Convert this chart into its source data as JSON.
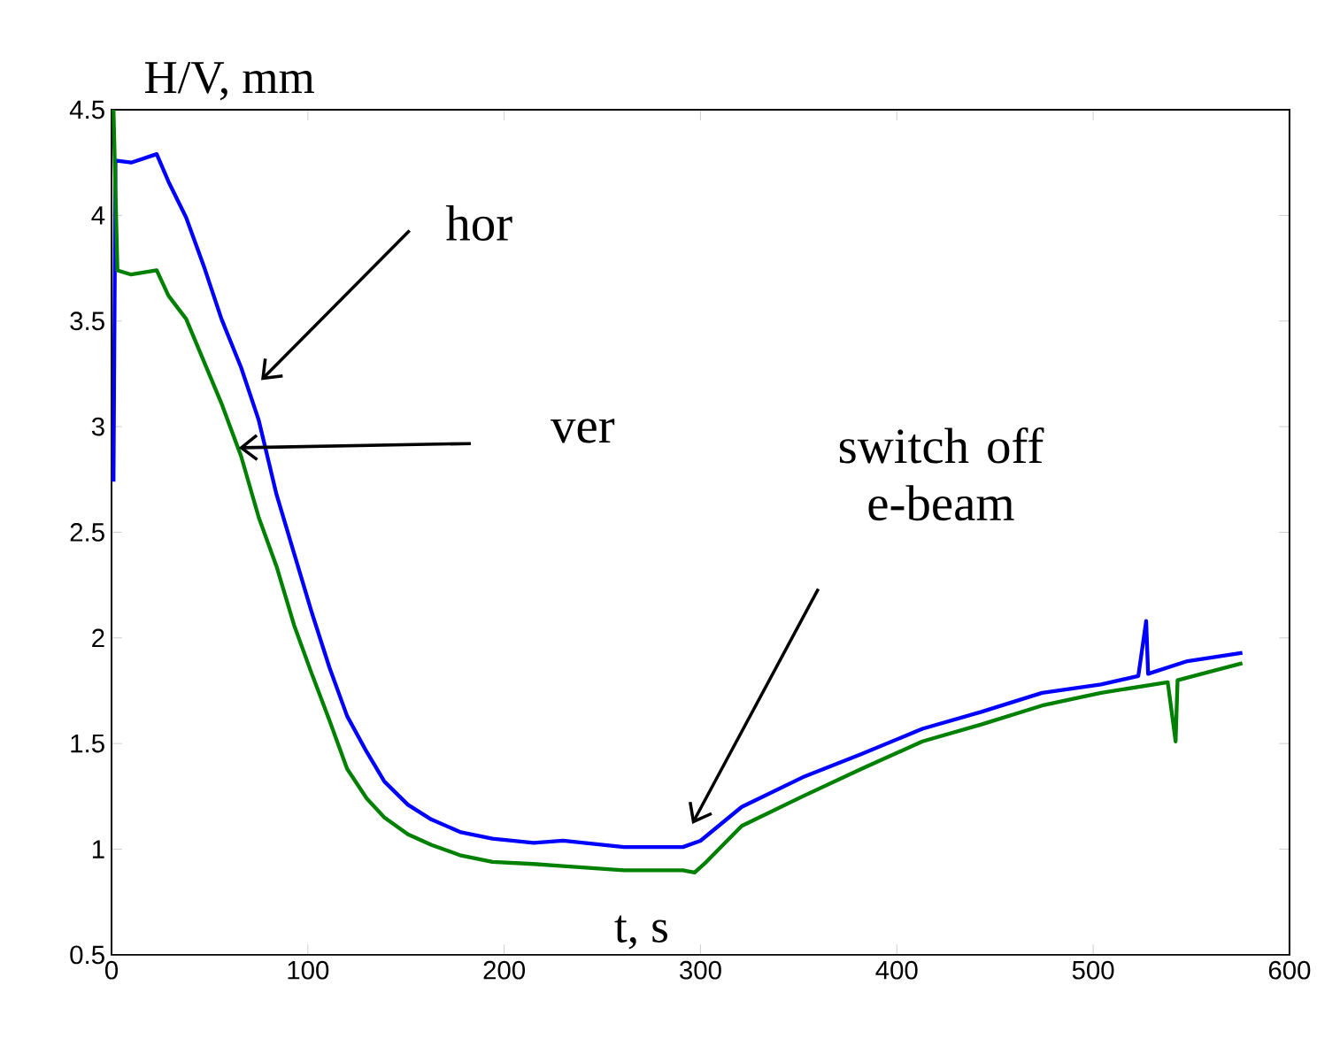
{
  "chart_data": {
    "type": "line",
    "ylabel": "H/V, mm",
    "xlabel": "t,  s",
    "xlim": [
      0,
      600
    ],
    "ylim": [
      0.5,
      4.5
    ],
    "xticks": [
      0,
      100,
      200,
      300,
      400,
      500,
      600
    ],
    "yticks": [
      0.5,
      1,
      1.5,
      2,
      2.5,
      3,
      3.5,
      4,
      4.5
    ],
    "grid": false,
    "marker": "none",
    "line_style": "solid",
    "series": [
      {
        "color": "#0000ff",
        "x": [
          1,
          2,
          10,
          23,
          29,
          38,
          47,
          56,
          66,
          75,
          84,
          93,
          102,
          111,
          120,
          130,
          139,
          151,
          163,
          178,
          194,
          215,
          230,
          261,
          291,
          300,
          321,
          352,
          382,
          413,
          443,
          474,
          504,
          523,
          527,
          528,
          548,
          576
        ],
        "values": [
          2.74,
          4.26,
          4.25,
          4.29,
          4.16,
          3.99,
          3.76,
          3.51,
          3.28,
          3.03,
          2.68,
          2.4,
          2.12,
          1.86,
          1.63,
          1.46,
          1.32,
          1.21,
          1.14,
          1.08,
          1.05,
          1.03,
          1.04,
          1.01,
          1.01,
          1.04,
          1.2,
          1.34,
          1.45,
          1.57,
          1.65,
          1.74,
          1.78,
          1.82,
          2.08,
          1.83,
          1.89,
          1.93
        ]
      },
      {
        "color": "#008000",
        "x": [
          1,
          3,
          10,
          23,
          29,
          38,
          47,
          56,
          66,
          75,
          84,
          93,
          102,
          111,
          120,
          130,
          139,
          151,
          163,
          178,
          194,
          215,
          230,
          261,
          291,
          297,
          303,
          321,
          352,
          382,
          413,
          443,
          474,
          504,
          538,
          542,
          543,
          576
        ],
        "values": [
          4.5,
          3.74,
          3.72,
          3.74,
          3.62,
          3.51,
          3.31,
          3.11,
          2.86,
          2.57,
          2.34,
          2.06,
          1.83,
          1.61,
          1.38,
          1.24,
          1.15,
          1.07,
          1.02,
          0.97,
          0.94,
          0.93,
          0.92,
          0.9,
          0.9,
          0.89,
          0.94,
          1.11,
          1.25,
          1.38,
          1.51,
          1.59,
          1.68,
          1.74,
          1.79,
          1.51,
          1.8,
          1.88
        ]
      }
    ],
    "annotations": [
      "hor",
      "ver",
      "switch off e-beam"
    ]
  }
}
